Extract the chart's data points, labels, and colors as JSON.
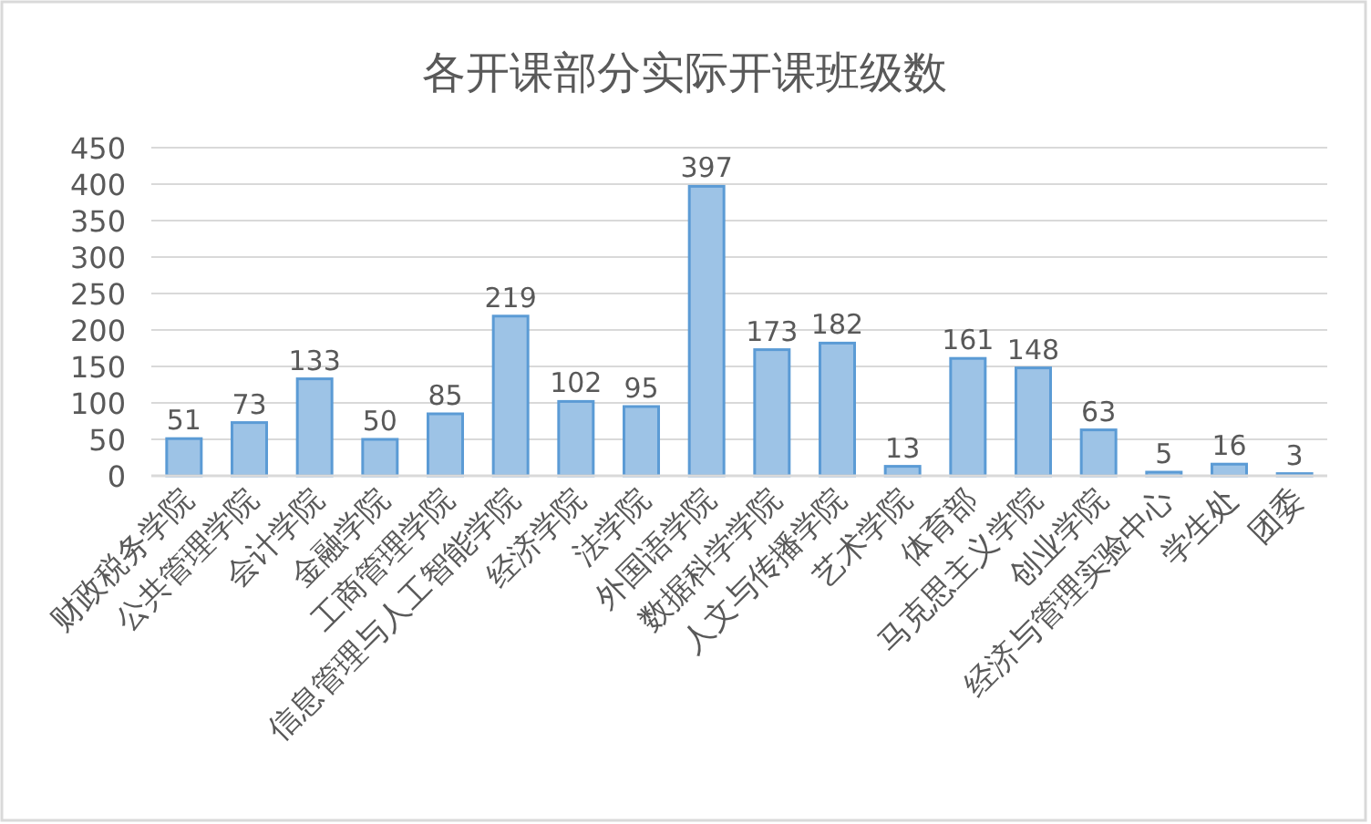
{
  "chart_data": {
    "type": "bar",
    "title": "各开课部分实际开课班级数",
    "categories": [
      "财政税务学院",
      "公共管理学院",
      "会计学院",
      "金融学院",
      "工商管理学院",
      "信息管理与人工智能学院",
      "经济学院",
      "法学院",
      "外国语学院",
      "数据科学学院",
      "人文与传播学院",
      "艺术学院",
      "体育部",
      "马克思主义学院",
      "创业学院",
      "经济与管理实验中心",
      "学生处",
      "团委"
    ],
    "values": [
      51,
      73,
      133,
      50,
      85,
      219,
      102,
      95,
      397,
      173,
      182,
      13,
      161,
      148,
      63,
      5,
      16,
      3
    ],
    "color": "#9dc3e6",
    "ylim": [
      0,
      450
    ],
    "yticks": [
      0,
      50,
      100,
      150,
      200,
      250,
      300,
      350,
      400,
      450
    ],
    "grid": "y",
    "data_labels": true
  }
}
